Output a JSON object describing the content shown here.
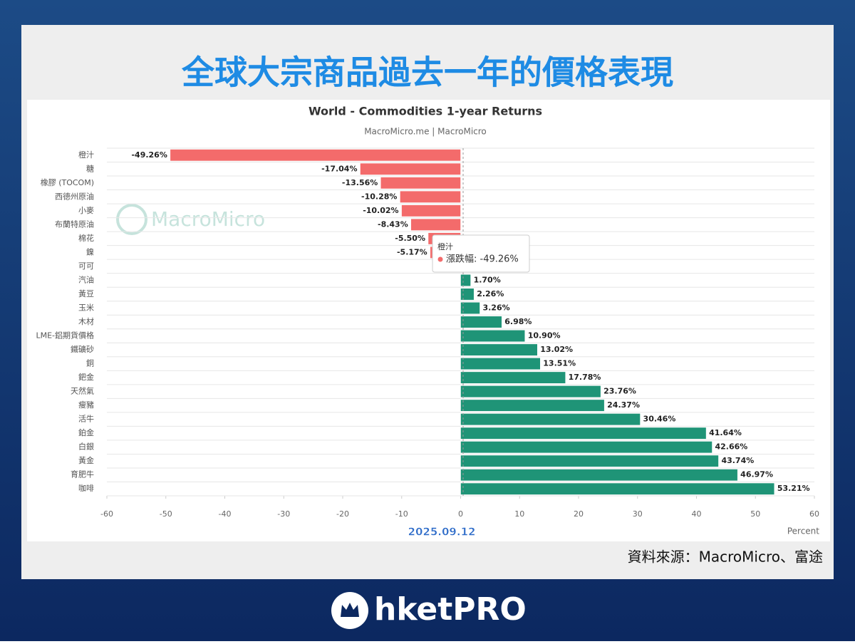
{
  "headline": "全球大宗商品過去一年的價格表現",
  "chart_data": {
    "type": "bar",
    "orientation": "horizontal",
    "title": "World - Commodities 1-year Returns",
    "subtitle": "MacroMicro.me | MacroMicro",
    "watermark": "MacroMicro",
    "categories": [
      "橙汁",
      "糖",
      "橡膠 (TOCOM)",
      "西德州原油",
      "小麥",
      "布蘭特原油",
      "棉花",
      "鎳",
      "可可",
      "汽油",
      "黃豆",
      "玉米",
      "木材",
      "LME-鋁期貨價格",
      "鐵礦砂",
      "銅",
      "鈀金",
      "天然氣",
      "瘦豬",
      "活牛",
      "鉑金",
      "白銀",
      "黃金",
      "育肥牛",
      "咖啡"
    ],
    "values": [
      -49.26,
      -17.04,
      -13.56,
      -10.28,
      -10.02,
      -8.43,
      -5.5,
      -5.17,
      -0.5,
      1.7,
      2.26,
      3.26,
      6.98,
      10.9,
      13.02,
      13.51,
      17.78,
      23.76,
      24.37,
      30.46,
      41.64,
      42.66,
      43.74,
      46.97,
      53.21
    ],
    "value_labels": [
      "-49.26%",
      "-17.04%",
      "-13.56%",
      "-10.28%",
      "-10.02%",
      "-8.43%",
      "-5.50%",
      "-5.17%",
      null,
      "1.70%",
      "2.26%",
      "3.26%",
      "6.98%",
      "10.90%",
      "13.02%",
      "13.51%",
      "17.78%",
      "23.76%",
      "24.37%",
      "30.46%",
      "41.64%",
      "42.66%",
      "43.74%",
      "46.97%",
      "53.21%"
    ],
    "negative_color": "#f36b6b",
    "positive_color": "#1f9477",
    "xlim": [
      -60,
      60
    ],
    "xticks": [
      -60,
      -50,
      -40,
      -30,
      -20,
      -10,
      0,
      10,
      20,
      30,
      40,
      50,
      60
    ],
    "x_label": "Percent",
    "date": "2025.09.12",
    "tooltip": {
      "category": "橙汁",
      "label": "漲跌幅: -49.26%"
    }
  },
  "source": "資料來源：MacroMicro、富途",
  "logo": "hketPRO"
}
